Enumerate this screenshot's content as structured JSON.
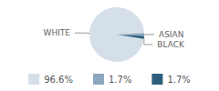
{
  "chart_data": {
    "type": "pie",
    "categories": [
      "WHITE",
      "ASIAN",
      "BLACK"
    ],
    "values": [
      96.6,
      1.7,
      1.7
    ],
    "value_labels": [
      "96.6%",
      "1.7%",
      "1.7%"
    ],
    "colors": [
      "#d5dfe9",
      "#8ea7c0",
      "#2d5f7d"
    ],
    "legend": "bottom"
  }
}
